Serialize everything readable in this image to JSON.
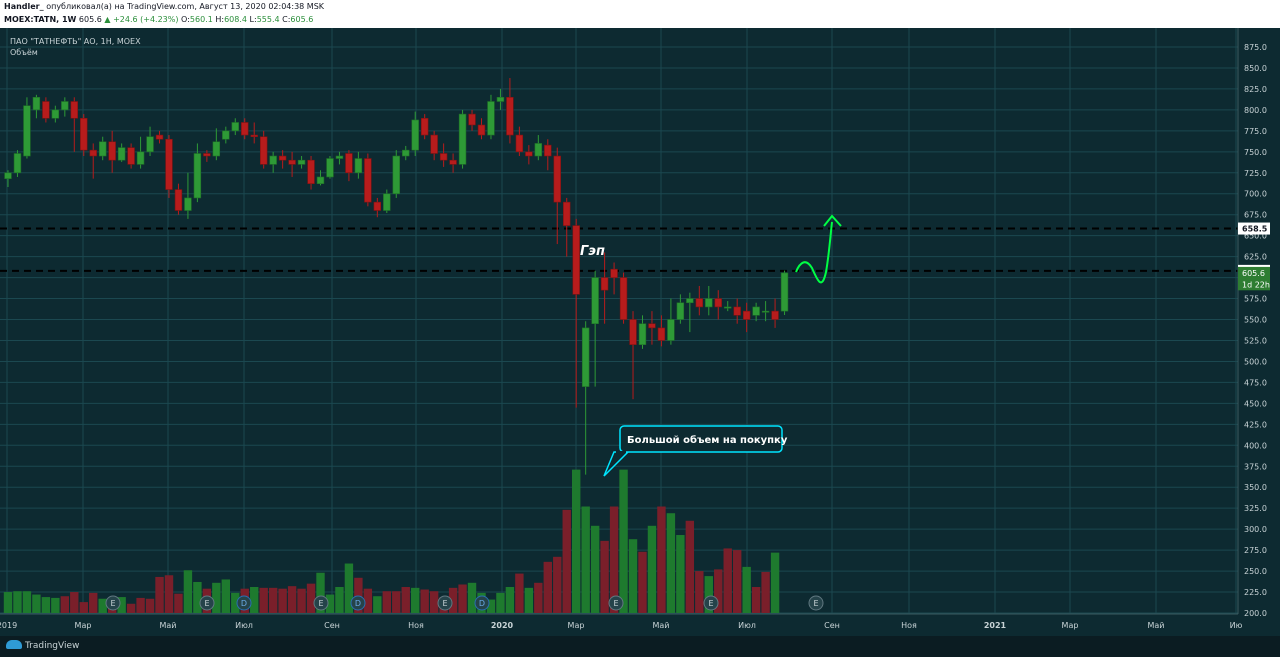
{
  "header": {
    "author": "Handler_",
    "published_text": "опубликовал(а) на TradingView.com, Август 13, 2020 02:04:38 MSK",
    "symbol_interval": "MOEX:TATN, 1W",
    "price": "605.6",
    "change": "▲ +24.6 (+4.23%)",
    "o_label": "O:",
    "o_value": "560.1",
    "h_label": "H:",
    "h_value": "608.4",
    "l_label": "L:",
    "l_value": "555.4",
    "c_label": "C:",
    "c_value": "605.6"
  },
  "chart_title": "ПАО \"ТАТНЕФТЬ\" АО, 1Н, MOEX",
  "volume_title": "Объём",
  "footer": {
    "logo": "TradingView"
  },
  "colors": {
    "up": "#2e9a36",
    "down": "#b71c1c",
    "volume_up": "#1e7a2e",
    "volume_down": "#7a1f2a",
    "background": "#0d2a31",
    "grid": "#1b4850",
    "annotation": "#00e5ff",
    "arrow": "#00ff44"
  },
  "chart_data": {
    "type": "candlestick",
    "yaxis_ticks": [
      "875.0",
      "850.0",
      "825.0",
      "800.0",
      "775.0",
      "750.0",
      "725.0",
      "700.0",
      "675.0",
      "650.0",
      "625.0",
      "600.0",
      "575.0",
      "550.0",
      "525.0",
      "500.0",
      "475.0",
      "450.0",
      "425.0",
      "400.0",
      "375.0",
      "350.0",
      "325.0",
      "300.0",
      "275.0",
      "250.0",
      "225.0",
      "200.0"
    ],
    "ylim": [
      195,
      888
    ],
    "xaxis_labels": [
      "2019",
      "Мар",
      "Май",
      "Июл",
      "Сен",
      "Ноя",
      "2020",
      "Мар",
      "Май",
      "Июл",
      "Сен",
      "Ноя",
      "2021",
      "Мар",
      "Май",
      "Ию"
    ],
    "price_badges": [
      {
        "text": "658.5",
        "value": 658.5,
        "style": "white"
      },
      {
        "text": "608.0",
        "value": 608.0,
        "style": "white"
      },
      {
        "text": "605.6",
        "value": 605.6,
        "style": "green"
      },
      {
        "text": "1d 22h",
        "value": 592,
        "style": "green"
      }
    ],
    "horizontal_levels": [
      658.5,
      608.0
    ],
    "candles": [
      [
        718,
        725,
        708,
        728
      ],
      [
        725,
        748,
        720,
        752
      ],
      [
        745,
        805,
        742,
        815
      ],
      [
        800,
        815,
        790,
        818
      ],
      [
        810,
        790,
        785,
        815
      ],
      [
        790,
        800,
        785,
        805
      ],
      [
        800,
        810,
        792,
        815
      ],
      [
        810,
        790,
        750,
        815
      ],
      [
        790,
        752,
        745,
        795
      ],
      [
        752,
        745,
        718,
        760
      ],
      [
        745,
        762,
        740,
        768
      ],
      [
        762,
        740,
        725,
        775
      ],
      [
        740,
        755,
        738,
        760
      ],
      [
        755,
        735,
        730,
        760
      ],
      [
        735,
        750,
        730,
        768
      ],
      [
        750,
        768,
        745,
        780
      ],
      [
        770,
        765,
        760,
        775
      ],
      [
        765,
        705,
        695,
        770
      ],
      [
        705,
        680,
        675,
        712
      ],
      [
        680,
        695,
        670,
        725
      ],
      [
        695,
        748,
        690,
        760
      ],
      [
        748,
        745,
        738,
        752
      ],
      [
        745,
        762,
        740,
        778
      ],
      [
        765,
        775,
        760,
        780
      ],
      [
        775,
        785,
        770,
        790
      ],
      [
        785,
        770,
        765,
        790
      ],
      [
        770,
        768,
        760,
        785
      ],
      [
        768,
        735,
        730,
        775
      ],
      [
        735,
        745,
        725,
        750
      ],
      [
        745,
        740,
        730,
        752
      ],
      [
        740,
        735,
        720,
        750
      ],
      [
        735,
        740,
        730,
        745
      ],
      [
        740,
        712,
        705,
        745
      ],
      [
        712,
        720,
        710,
        728
      ],
      [
        720,
        742,
        718,
        745
      ],
      [
        742,
        745,
        735,
        750
      ],
      [
        748,
        725,
        715,
        752
      ],
      [
        725,
        742,
        718,
        750
      ],
      [
        742,
        690,
        685,
        748
      ],
      [
        690,
        680,
        672,
        695
      ],
      [
        680,
        700,
        677,
        705
      ],
      [
        700,
        745,
        695,
        752
      ],
      [
        745,
        752,
        740,
        757
      ],
      [
        752,
        788,
        745,
        798
      ],
      [
        790,
        770,
        765,
        795
      ],
      [
        770,
        748,
        740,
        775
      ],
      [
        748,
        740,
        732,
        760
      ],
      [
        740,
        735,
        725,
        748
      ],
      [
        735,
        795,
        730,
        800
      ],
      [
        795,
        782,
        775,
        800
      ],
      [
        782,
        770,
        765,
        790
      ],
      [
        770,
        810,
        765,
        818
      ],
      [
        810,
        815,
        800,
        825
      ],
      [
        815,
        770,
        760,
        838
      ],
      [
        770,
        750,
        745,
        780
      ],
      [
        750,
        745,
        735,
        758
      ],
      [
        745,
        760,
        740,
        770
      ],
      [
        758,
        745,
        728,
        765
      ],
      [
        745,
        690,
        640,
        755
      ],
      [
        690,
        662,
        625,
        695
      ],
      [
        662,
        580,
        445,
        670
      ],
      [
        470,
        540,
        365,
        548
      ],
      [
        545,
        600,
        470,
        608
      ],
      [
        600,
        585,
        545,
        630
      ],
      [
        610,
        600,
        580,
        618
      ],
      [
        600,
        550,
        545,
        606
      ],
      [
        550,
        520,
        455,
        560
      ],
      [
        520,
        545,
        515,
        555
      ],
      [
        545,
        540,
        520,
        560
      ],
      [
        540,
        525,
        518,
        555
      ],
      [
        525,
        550,
        520,
        575
      ],
      [
        550,
        570,
        545,
        580
      ],
      [
        570,
        575,
        535,
        582
      ],
      [
        575,
        565,
        555,
        590
      ],
      [
        565,
        575,
        555,
        590
      ],
      [
        575,
        565,
        550,
        585
      ],
      [
        565,
        565,
        560,
        572
      ],
      [
        565,
        555,
        545,
        575
      ],
      [
        560,
        550,
        535,
        570
      ],
      [
        555,
        565,
        548,
        570
      ],
      [
        560,
        560,
        548,
        572
      ],
      [
        560,
        550,
        540,
        575
      ],
      [
        560,
        605.6,
        555.4,
        608.4
      ]
    ],
    "volumes": [
      [
        225,
        1
      ],
      [
        226,
        1
      ],
      [
        226,
        1
      ],
      [
        222,
        1
      ],
      [
        219,
        1
      ],
      [
        218,
        1
      ],
      [
        220,
        0
      ],
      [
        225,
        0
      ],
      [
        213,
        0
      ],
      [
        224,
        0
      ],
      [
        217,
        1
      ],
      [
        215,
        0
      ],
      [
        219,
        1
      ],
      [
        211,
        0
      ],
      [
        218,
        0
      ],
      [
        217,
        0
      ],
      [
        243,
        0
      ],
      [
        245,
        0
      ],
      [
        223,
        0
      ],
      [
        251,
        1
      ],
      [
        237,
        1
      ],
      [
        229,
        0
      ],
      [
        236,
        1
      ],
      [
        240,
        1
      ],
      [
        224,
        1
      ],
      [
        229,
        0
      ],
      [
        231,
        1
      ],
      [
        230,
        0
      ],
      [
        230,
        0
      ],
      [
        229,
        0
      ],
      [
        232,
        0
      ],
      [
        229,
        0
      ],
      [
        235,
        0
      ],
      [
        248,
        1
      ],
      [
        222,
        1
      ],
      [
        231,
        1
      ],
      [
        259,
        1
      ],
      [
        242,
        0
      ],
      [
        229,
        0
      ],
      [
        220,
        1
      ],
      [
        226,
        0
      ],
      [
        226,
        0
      ],
      [
        231,
        0
      ],
      [
        230,
        1
      ],
      [
        228,
        0
      ],
      [
        226,
        0
      ],
      [
        219,
        0
      ],
      [
        230,
        0
      ],
      [
        234,
        0
      ],
      [
        236,
        1
      ],
      [
        224,
        1
      ],
      [
        216,
        1
      ],
      [
        224,
        1
      ],
      [
        231,
        1
      ],
      [
        247,
        0
      ],
      [
        230,
        1
      ],
      [
        236,
        0
      ],
      [
        261,
        0
      ],
      [
        267,
        0
      ],
      [
        323,
        0
      ],
      [
        371,
        1
      ],
      [
        327,
        1
      ],
      [
        304,
        1
      ],
      [
        286,
        0
      ],
      [
        327,
        0
      ],
      [
        371,
        1
      ],
      [
        288,
        1
      ],
      [
        273,
        0
      ],
      [
        304,
        1
      ],
      [
        327,
        0
      ],
      [
        319,
        1
      ],
      [
        293,
        1
      ],
      [
        310,
        0
      ],
      [
        250,
        0
      ],
      [
        244,
        1
      ],
      [
        252,
        0
      ],
      [
        277,
        0
      ],
      [
        275,
        0
      ],
      [
        255,
        1
      ],
      [
        231,
        0
      ],
      [
        249,
        0
      ],
      [
        272,
        1
      ]
    ],
    "earnings_markers_x": [
      113,
      207,
      244,
      321,
      358,
      445,
      482,
      616,
      711,
      816
    ],
    "earnings_label": "E",
    "dividend_label": "D",
    "dividend_markers_x": [
      244,
      358,
      482
    ],
    "annotations": {
      "gap_label": "Гэп",
      "callout_text": "Большой объем на покупку"
    }
  }
}
